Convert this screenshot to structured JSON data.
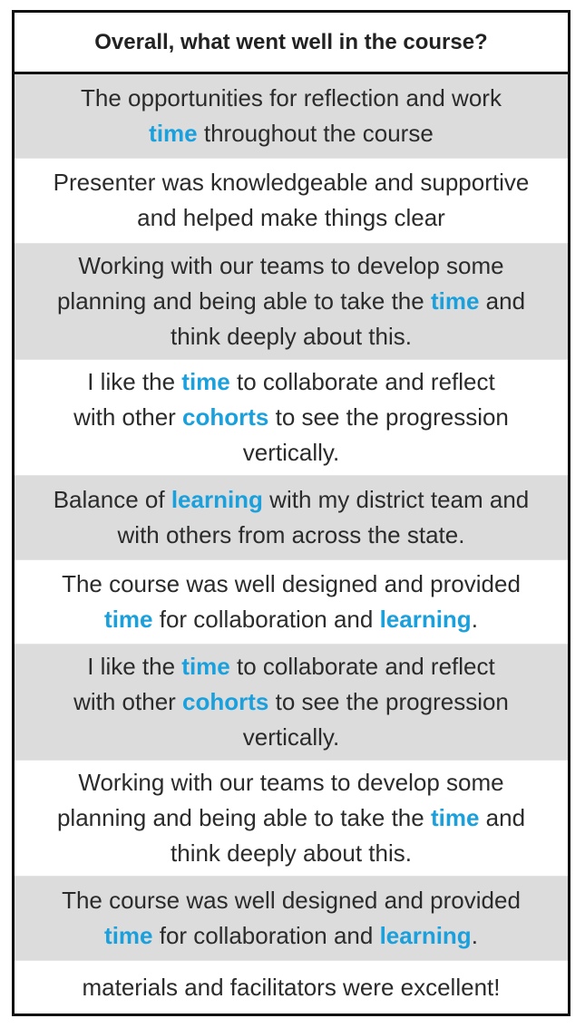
{
  "title": "Overall, what went well in the course?",
  "highlight_color": "#1aa0dc",
  "responses": [
    {
      "shaded": true,
      "lines": [
        [
          {
            "t": "The opportunities for reflection and work"
          }
        ],
        [
          {
            "t": "time",
            "kw": true
          },
          {
            "t": " throughout the course"
          }
        ]
      ]
    },
    {
      "shaded": false,
      "lines": [
        [
          {
            "t": "Presenter was knowledgeable and supportive"
          }
        ],
        [
          {
            "t": "and helped make things clear"
          }
        ]
      ]
    },
    {
      "shaded": true,
      "lines": [
        [
          {
            "t": "Working with our teams to develop some"
          }
        ],
        [
          {
            "t": "planning and being able to take the "
          },
          {
            "t": "time",
            "kw": true
          },
          {
            "t": " and"
          }
        ],
        [
          {
            "t": "think deeply about this."
          }
        ]
      ]
    },
    {
      "shaded": false,
      "lines": [
        [
          {
            "t": "I like the "
          },
          {
            "t": "time",
            "kw": true
          },
          {
            "t": " to collaborate and reflect"
          }
        ],
        [
          {
            "t": "with other "
          },
          {
            "t": "cohorts",
            "kw": true
          },
          {
            "t": " to see the progression"
          }
        ],
        [
          {
            "t": "vertically."
          }
        ]
      ]
    },
    {
      "shaded": true,
      "lines": [
        [
          {
            "t": "Balance of "
          },
          {
            "t": "learning",
            "kw": true
          },
          {
            "t": " with my district team and"
          }
        ],
        [
          {
            "t": "with others from across the state."
          }
        ]
      ]
    },
    {
      "shaded": false,
      "lines": [
        [
          {
            "t": "The course was well designed and provided"
          }
        ],
        [
          {
            "t": "time",
            "kw": true
          },
          {
            "t": " for collaboration and "
          },
          {
            "t": "learning",
            "kw": true
          },
          {
            "t": "."
          }
        ]
      ]
    },
    {
      "shaded": true,
      "lines": [
        [
          {
            "t": "I like the "
          },
          {
            "t": "time",
            "kw": true
          },
          {
            "t": " to collaborate and reflect"
          }
        ],
        [
          {
            "t": "with other "
          },
          {
            "t": "cohorts",
            "kw": true
          },
          {
            "t": " to see the progression"
          }
        ],
        [
          {
            "t": "vertically."
          }
        ]
      ]
    },
    {
      "shaded": false,
      "lines": [
        [
          {
            "t": "Working with our teams to develop some"
          }
        ],
        [
          {
            "t": "planning and being able to take the "
          },
          {
            "t": "time",
            "kw": true
          },
          {
            "t": " and"
          }
        ],
        [
          {
            "t": "think deeply about this."
          }
        ]
      ]
    },
    {
      "shaded": true,
      "lines": [
        [
          {
            "t": "The course was well designed and provided"
          }
        ],
        [
          {
            "t": "time",
            "kw": true
          },
          {
            "t": " for collaboration and "
          },
          {
            "t": "learning",
            "kw": true
          },
          {
            "t": "."
          }
        ]
      ]
    },
    {
      "shaded": false,
      "lines": [
        [
          {
            "t": "materials and facilitators were excellent!"
          }
        ]
      ]
    }
  ]
}
